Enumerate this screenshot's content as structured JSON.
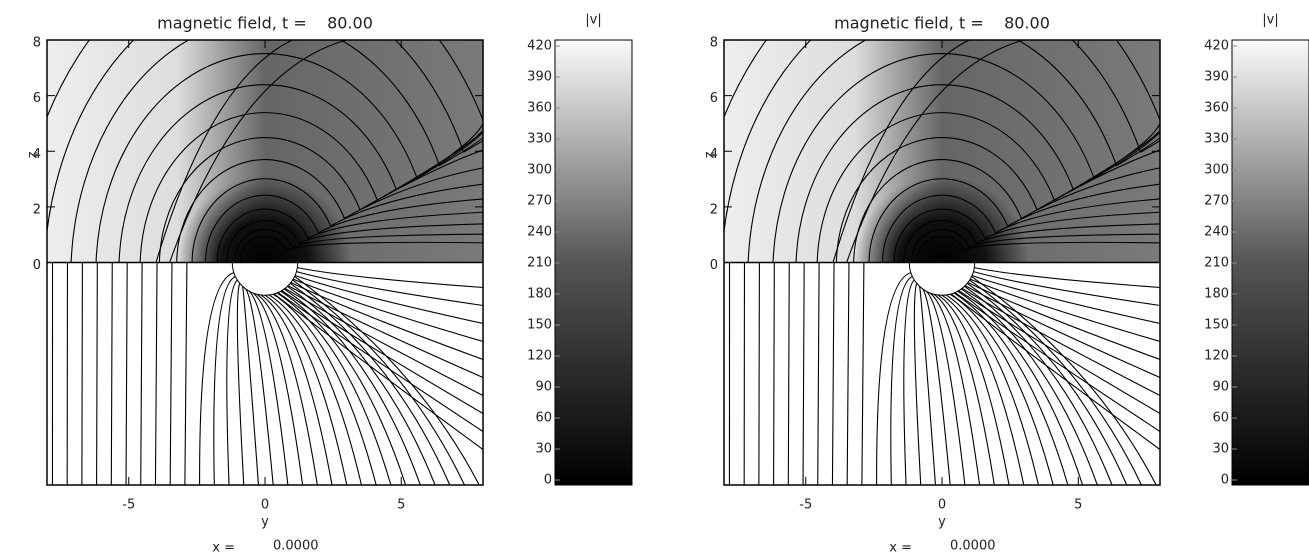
{
  "chart_data": [
    {
      "type": "contour",
      "title": "magnetic field, t =    80.00",
      "ylabel": "z",
      "xlabel": "y",
      "slice_label": "x =",
      "slice_value": "0.0000",
      "xlim": [
        -8,
        8
      ],
      "xticks": [
        -5,
        0,
        5
      ],
      "ylim": [
        -8,
        8
      ],
      "yticks": [
        0,
        2,
        4,
        6,
        8
      ],
      "colorbar": {
        "title": "|v|",
        "lim": [
          0,
          420
        ],
        "ticks": [
          0,
          30,
          60,
          90,
          120,
          150,
          180,
          210,
          240,
          270,
          300,
          330,
          360,
          390,
          420
        ]
      }
    },
    {
      "type": "contour",
      "title": "magnetic field, t =    80.00",
      "ylabel": "z",
      "xlabel": "y",
      "slice_label": "x =",
      "slice_value": "0.0000",
      "xlim": [
        -8,
        8
      ],
      "xticks": [
        -5,
        0,
        5
      ],
      "ylim": [
        -8,
        8
      ],
      "yticks": [
        0,
        2,
        4,
        6,
        8
      ],
      "colorbar": {
        "title": "|v|",
        "lim": [
          0,
          420
        ],
        "ticks": [
          0,
          30,
          60,
          90,
          120,
          150,
          180,
          210,
          240,
          270,
          300,
          330,
          360,
          390,
          420
        ]
      }
    }
  ]
}
